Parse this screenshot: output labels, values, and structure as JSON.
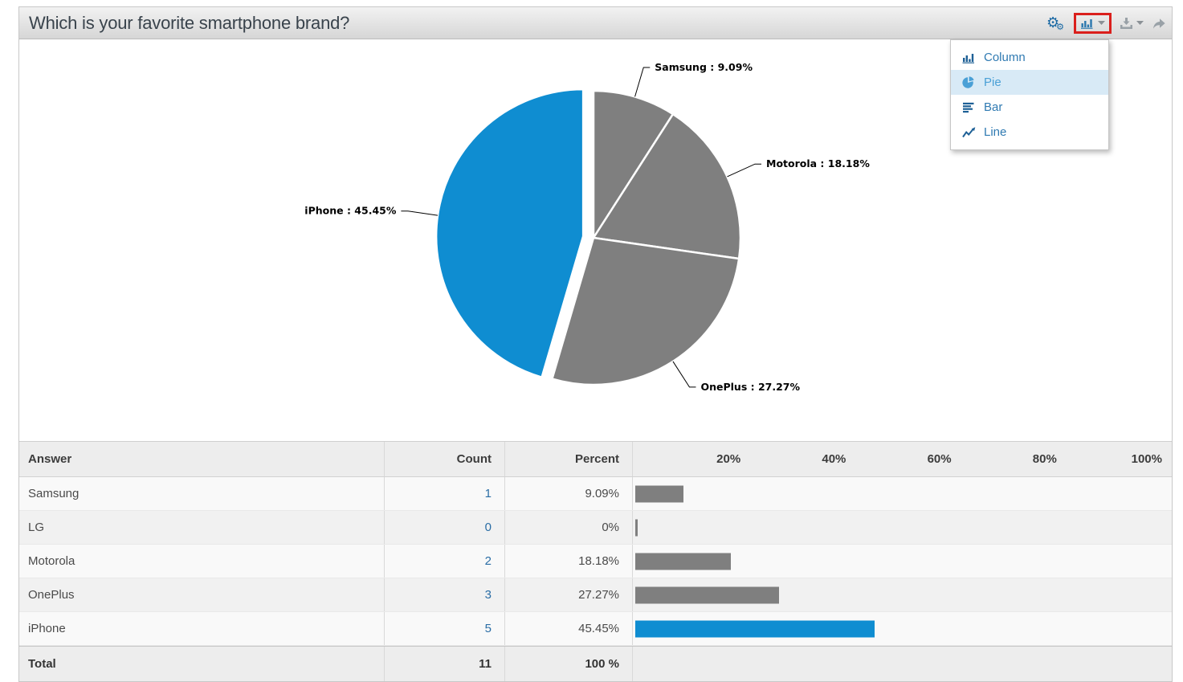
{
  "header": {
    "title": "Which is your favorite smartphone brand?"
  },
  "toolbar": {
    "icons": [
      "gears-icon",
      "chart-type-icon",
      "chevron-down-icon",
      "download-icon",
      "share-arrow-icon"
    ]
  },
  "chart_menu": {
    "items": [
      {
        "label": "Column",
        "icon": "column-chart-icon",
        "active": false
      },
      {
        "label": "Pie",
        "icon": "pie-chart-icon",
        "active": true
      },
      {
        "label": "Bar",
        "icon": "bar-chart-icon",
        "active": false
      },
      {
        "label": "Line",
        "icon": "line-chart-icon",
        "active": false
      }
    ]
  },
  "chart_data": {
    "type": "pie",
    "title": "",
    "direction": "clockwise",
    "start_angle_deg": 0,
    "slices": [
      {
        "label": "Samsung",
        "value": 9.09,
        "display": "Samsung : 9.09%",
        "color": "#7f7f7f",
        "exploded": false
      },
      {
        "label": "Motorola",
        "value": 18.18,
        "display": "Motorola : 18.18%",
        "color": "#7f7f7f",
        "exploded": false
      },
      {
        "label": "OnePlus",
        "value": 27.27,
        "display": "OnePlus : 27.27%",
        "color": "#7f7f7f",
        "exploded": false
      },
      {
        "label": "iPhone",
        "value": 45.45,
        "display": "iPhone : 45.45%",
        "color": "#0f8dd1",
        "exploded": true
      }
    ]
  },
  "table": {
    "headers": {
      "answer": "Answer",
      "count": "Count",
      "percent": "Percent"
    },
    "axis_ticks": [
      "20%",
      "40%",
      "60%",
      "80%",
      "100%"
    ],
    "rows": [
      {
        "answer": "Samsung",
        "count": 1,
        "percent": "9.09%",
        "bar_pct": 9.09,
        "bar_color": "#7f7f7f"
      },
      {
        "answer": "LG",
        "count": 0,
        "percent": "0%",
        "bar_pct": 0,
        "bar_color": "#7f7f7f"
      },
      {
        "answer": "Motorola",
        "count": 2,
        "percent": "18.18%",
        "bar_pct": 18.18,
        "bar_color": "#7f7f7f"
      },
      {
        "answer": "OnePlus",
        "count": 3,
        "percent": "27.27%",
        "bar_pct": 27.27,
        "bar_color": "#7f7f7f"
      },
      {
        "answer": "iPhone",
        "count": 5,
        "percent": "45.45%",
        "bar_pct": 45.45,
        "bar_color": "#0f8dd1"
      }
    ],
    "total": {
      "label": "Total",
      "count": 11,
      "percent": "100 %"
    }
  },
  "colors": {
    "accent_blue": "#0f8dd1",
    "neutral_gray": "#7f7f7f",
    "menu_active_bg": "#d8eaf6",
    "menu_link_blue": "#2f7ab2",
    "highlight_box_red": "#da1f1c",
    "count_text_blue": "#2a6da5"
  }
}
